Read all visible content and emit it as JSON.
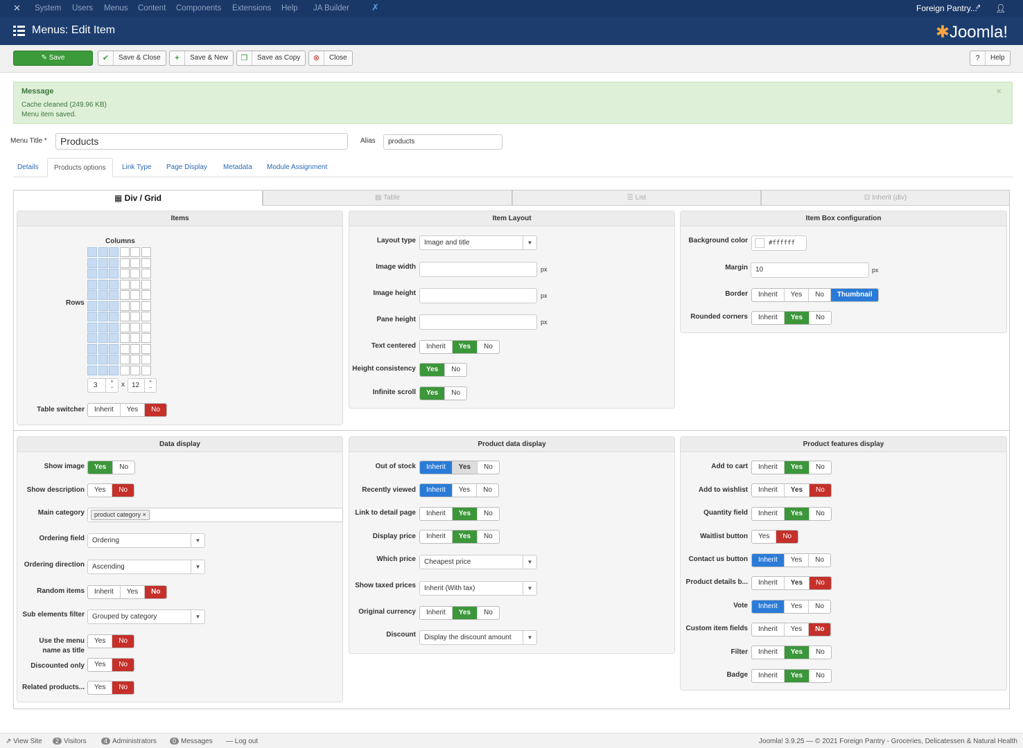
{
  "nav": {
    "items": [
      "System",
      "Users",
      "Menus",
      "Content",
      "Components",
      "Extensions",
      "Help",
      "JA Builder"
    ],
    "site": "Foreign Pantry...",
    "user_icon": "user-icon"
  },
  "header": {
    "title": "Menus: Edit Item",
    "logo": "Joomla!"
  },
  "toolbar": {
    "save": "Save",
    "save_close": "Save & Close",
    "save_new": "Save & New",
    "save_copy": "Save as Copy",
    "close": "Close",
    "help": "Help"
  },
  "message": {
    "heading": "Message",
    "line1": "Cache cleaned (249.96 KB)",
    "line2": "Menu item saved.",
    "close": "×"
  },
  "form": {
    "menu_title_label": "Menu Title *",
    "menu_title_value": "Products",
    "alias_label": "Alias",
    "alias_value": "products"
  },
  "tabs": [
    "Details",
    "Products options",
    "Link Type",
    "Page Display",
    "Metadata",
    "Module Assignment"
  ],
  "view_tabs": [
    "Div / Grid",
    "Table",
    "List",
    "Inherit (div)"
  ],
  "items_panel": {
    "title": "Items",
    "columns": "Columns",
    "rows": "Rows",
    "cols_value": "3",
    "x": "x",
    "rows_value": "12",
    "table_switcher": "Table switcher",
    "ts_opts": [
      "Inherit",
      "Yes",
      "No"
    ]
  },
  "layout_panel": {
    "title": "Item Layout",
    "layout_type": "Layout type",
    "layout_value": "Image and title",
    "image_width": "Image width",
    "image_height": "Image height",
    "pane_height": "Pane height",
    "px": "px",
    "text_centered": "Text centered",
    "height_consistency": "Height consistency",
    "infinite_scroll": "Infinite scroll"
  },
  "box_panel": {
    "title": "Item Box configuration",
    "bg_color": "Background color",
    "bg_value": "#ffffff",
    "margin": "Margin",
    "margin_value": "10",
    "border": "Border",
    "rounded": "Rounded corners",
    "px": "px"
  },
  "data_panel": {
    "title": "Data display",
    "show_image": "Show image",
    "show_description": "Show description",
    "main_category": "Main category",
    "category_tag": "product category",
    "ordering_field": "Ordering field",
    "ordering_value": "Ordering",
    "ordering_direction": "Ordering direction",
    "direction_value": "Ascending",
    "random_items": "Random items",
    "sub_elements": "Sub elements filter",
    "sub_value": "Grouped by category",
    "use_menu_name": "Use the menu",
    "use_menu_name2": "name as title",
    "discounted_only": "Discounted only",
    "related": "Related products..."
  },
  "pdata_panel": {
    "title": "Product data display",
    "out_of_stock": "Out of stock",
    "recently_viewed": "Recently viewed",
    "link_detail": "Link to detail page",
    "display_price": "Display price",
    "which_price": "Which price",
    "which_value": "Cheapest price",
    "taxed": "Show taxed prices",
    "taxed_value": "Inherit (With tax)",
    "original_currency": "Original currency",
    "discount": "Discount",
    "discount_value": "Display the discount amount"
  },
  "features_panel": {
    "title": "Product features display",
    "add_to_cart": "Add to cart",
    "add_to_wishlist": "Add to wishlist",
    "quantity": "Quantity field",
    "waitlist": "Waitlist button",
    "contact": "Contact us button",
    "details": "Product details b...",
    "vote": "Vote",
    "custom_fields": "Custom item fields",
    "filter": "Filter",
    "badge": "Badge"
  },
  "toggle": {
    "inherit": "Inherit",
    "yes": "Yes",
    "no": "No",
    "thumbnail": "Thumbnail"
  },
  "footer": {
    "view_site": "View Site",
    "visitors_count": "2",
    "visitors": "Visitors",
    "admins_count": "4",
    "admins": "Administrators",
    "messages_count": "0",
    "messages": "Messages",
    "logout": "Log out",
    "copyright": "Joomla! 3.9.25 — © 2021 Foreign Pantry - Groceries, Delicatessen & Natural Health"
  },
  "colors": {
    "navbar": "#1a3867",
    "header": "#1c3d6e",
    "green": "#3c963a",
    "red": "#c5302a",
    "blue": "#2a7bd8"
  }
}
